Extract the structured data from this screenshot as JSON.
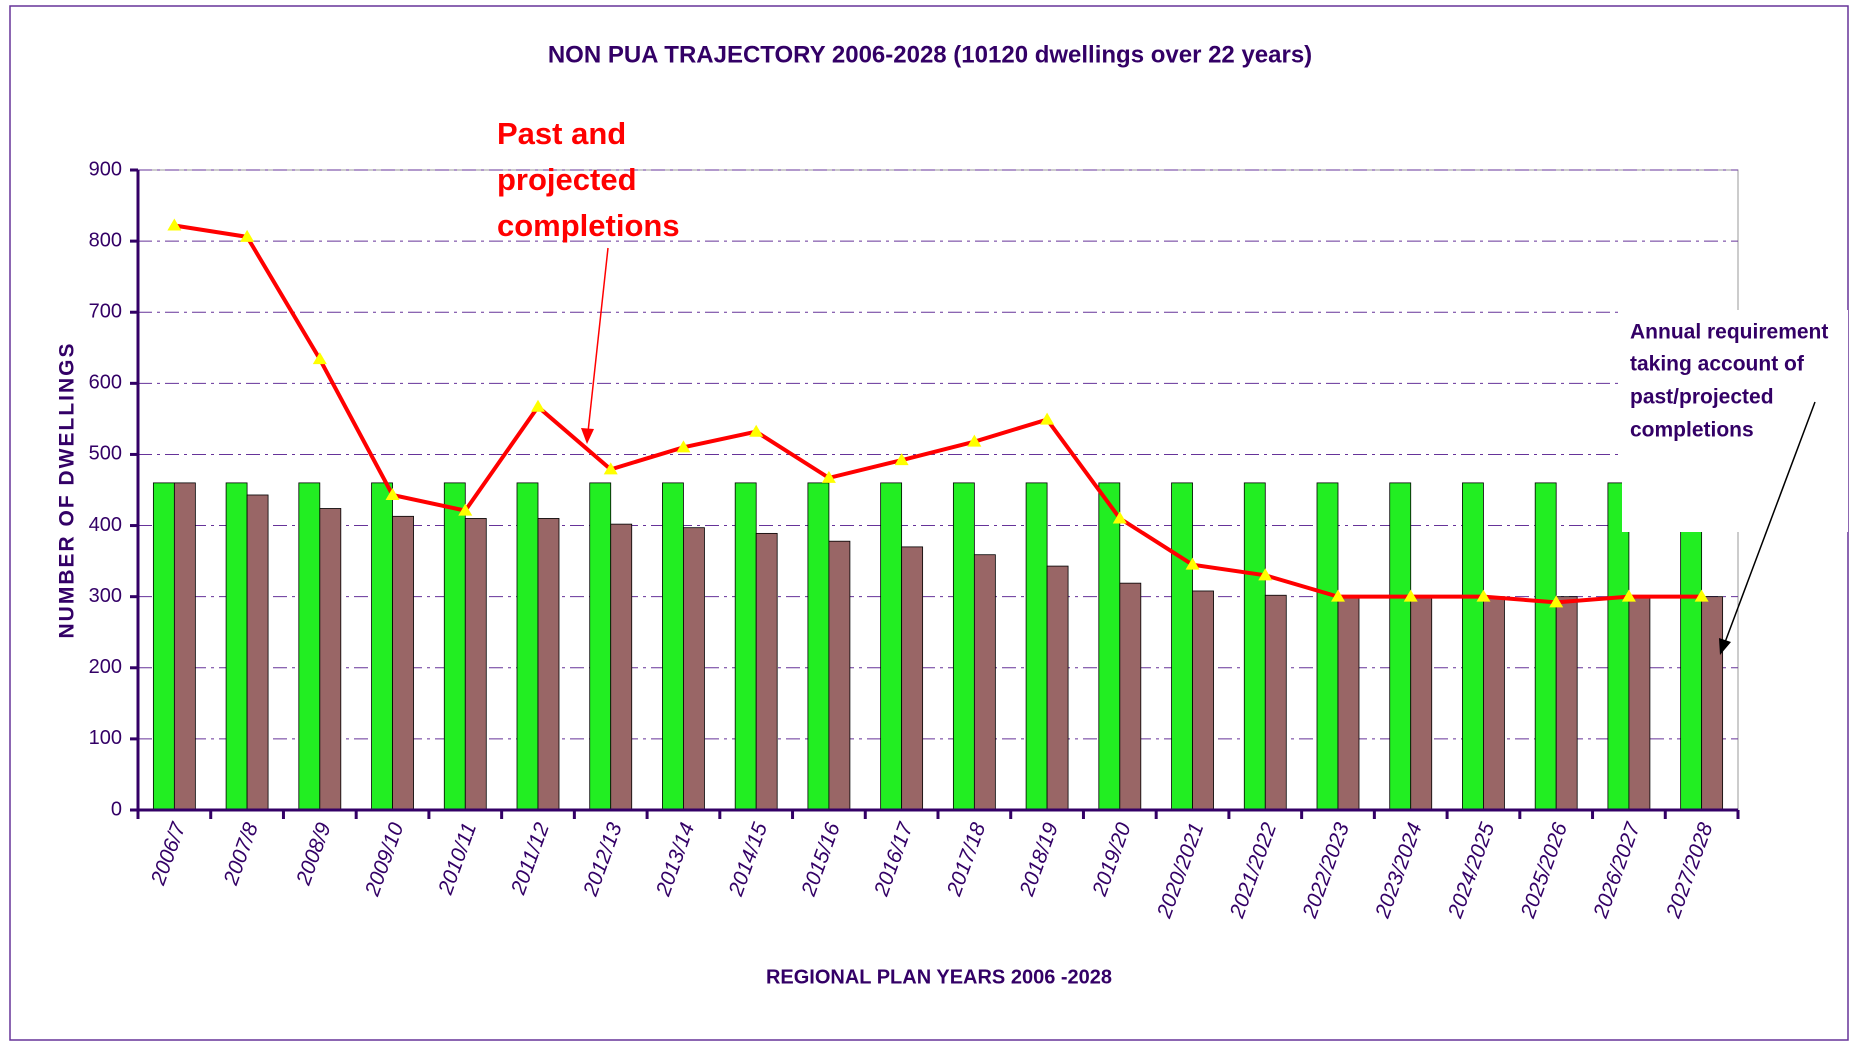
{
  "chart_data": {
    "type": "bar",
    "title": "NON PUA TRAJECTORY 2006-2028 (10120 dwellings over 22 years)",
    "x_label": "REGIONAL PLAN YEARS 2006 -2028",
    "y_label": "NUMBER OF DWELLINGS",
    "annotations": [
      "Past and",
      "projected",
      "completions",
      "Annual requirement",
      "taking account of",
      "past/projected",
      "completions"
    ],
    "categories": [
      "2006/7",
      "2007/8",
      "2008/9",
      "2009/10",
      "2010/11",
      "2011/12",
      "2012/13",
      "2013/14",
      "2014/15",
      "2015/16",
      "2016/17",
      "2017/18",
      "2018/19",
      "2019/20",
      "2020/2021",
      "2021/2022",
      "2022/2023",
      "2023/2024",
      "2024/2025",
      "2025/2026",
      "2026/2027",
      "2027/2028"
    ],
    "series": [
      {
        "type": "bar",
        "color": "#22ee22",
        "values": [
          460,
          460,
          460,
          460,
          460,
          460,
          460,
          460,
          460,
          460,
          460,
          460,
          460,
          460,
          460,
          460,
          460,
          460,
          460,
          460,
          460,
          460
        ]
      },
      {
        "type": "bar",
        "color": "#996666",
        "values": [
          460,
          443,
          424,
          413,
          410,
          410,
          402,
          397,
          389,
          378,
          370,
          359,
          343,
          319,
          308,
          302,
          300,
          300,
          300,
          300,
          300,
          300
        ]
      },
      {
        "type": "line",
        "color": "#ff0000",
        "marker_color": "#ffff00",
        "values": [
          822,
          806,
          634,
          443,
          421,
          567,
          479,
          510,
          532,
          467,
          492,
          518,
          549,
          410,
          345,
          330,
          300,
          300,
          300,
          292,
          300,
          300
        ]
      }
    ],
    "ylim": [
      0,
      900
    ],
    "yticks": [
      0,
      100,
      200,
      300,
      400,
      500,
      600,
      700,
      800,
      900
    ],
    "grid": true
  }
}
